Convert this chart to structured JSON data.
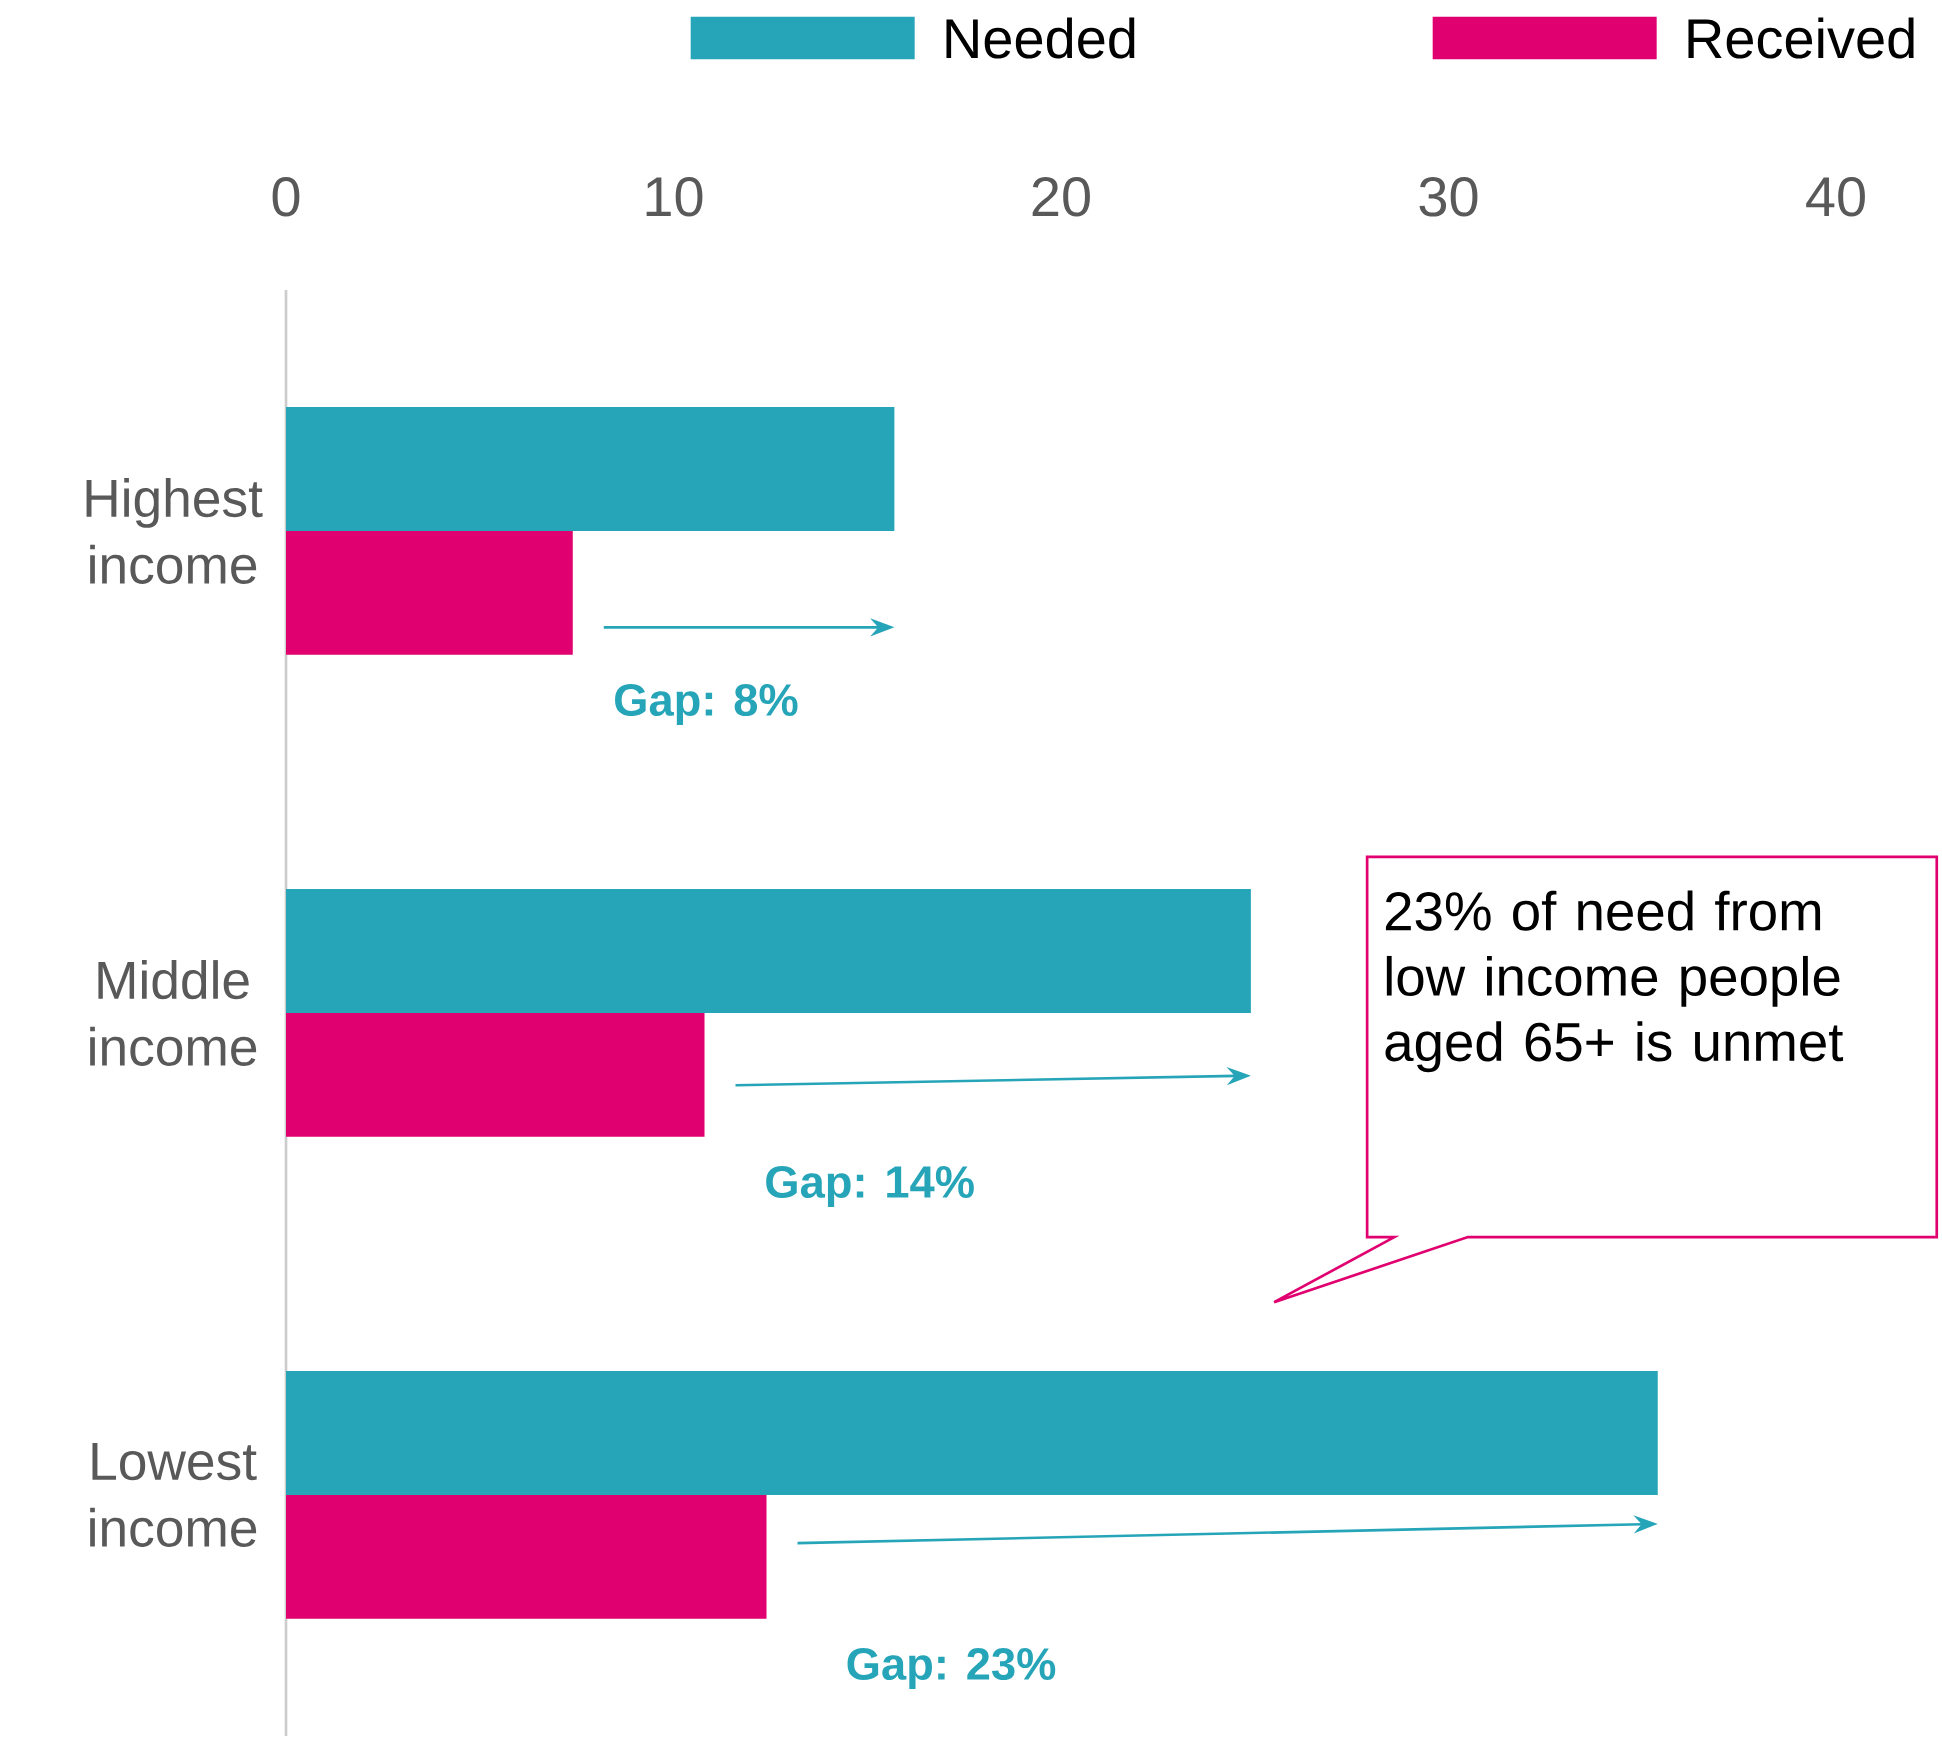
{
  "chart_data": {
    "type": "bar",
    "orientation": "horizontal",
    "categories": [
      "Highest income",
      "Middle income",
      "Lowest income"
    ],
    "series": [
      {
        "name": "Needed",
        "color": "#26a5b9",
        "values": [
          15.7,
          24.9,
          35.4
        ]
      },
      {
        "name": "Received",
        "color": "#e0006f",
        "values": [
          7.4,
          10.8,
          12.4
        ]
      }
    ],
    "xlim": [
      0,
      40
    ],
    "xticks": [
      0,
      10,
      20,
      30,
      40
    ],
    "legend": "top",
    "grid": false,
    "annotations": [
      "Gap: 8%",
      "Gap: 14%",
      "Gap: 23%",
      "23% of need from low income people aged 65+ is unmet"
    ]
  }
}
